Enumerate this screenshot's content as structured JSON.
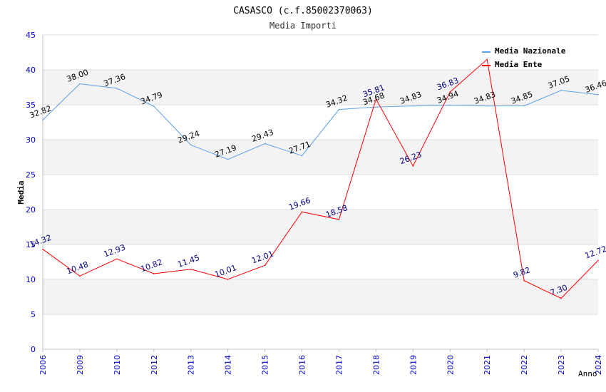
{
  "chart_data": {
    "type": "line",
    "title": "CASASCO (c.f.85002370063)",
    "subtitle": "Media Importi",
    "xlabel": "Anno",
    "ylabel": "Media",
    "ylim": [
      0,
      45
    ],
    "yticks": [
      "0",
      "5",
      "10",
      "15",
      "20",
      "25",
      "30",
      "35",
      "40",
      "45"
    ],
    "categories": [
      "2006",
      "2009",
      "2010",
      "2012",
      "2013",
      "2014",
      "2015",
      "2016",
      "2017",
      "2018",
      "2019",
      "2020",
      "2021",
      "2022",
      "2023",
      "2024"
    ],
    "legend_position": "top-right",
    "series": [
      {
        "name": "Media Nazionale",
        "color": "#5aa0e6",
        "label_color": "#000000",
        "values": [
          32.82,
          38.0,
          37.36,
          34.79,
          29.24,
          27.19,
          29.43,
          27.71,
          34.32,
          34.68,
          34.83,
          34.94,
          34.83,
          34.85,
          37.05,
          36.46
        ],
        "labels": [
          "32.82",
          "38.00",
          "37.36",
          "34.79",
          "29.24",
          "27.19",
          "29.43",
          "27.71",
          "34.32",
          "34.68",
          "34.83",
          "34.94",
          "34.83",
          "34.85",
          "37.05",
          "36.46"
        ]
      },
      {
        "name": "Media Ente",
        "color": "#ff0000",
        "label_color": "#000080",
        "values": [
          14.32,
          10.48,
          12.93,
          10.82,
          11.45,
          10.01,
          12.01,
          19.66,
          18.58,
          35.81,
          26.23,
          36.83,
          41.5,
          9.82,
          7.3,
          12.72
        ],
        "labels": [
          "14.32",
          "10.48",
          "12.93",
          "10.82",
          "11.45",
          "10.01",
          "12.01",
          "19.66",
          "18.58",
          "35.81",
          "26.23",
          "36.83",
          "",
          "9.82",
          "7.30",
          "12.72"
        ]
      }
    ]
  }
}
